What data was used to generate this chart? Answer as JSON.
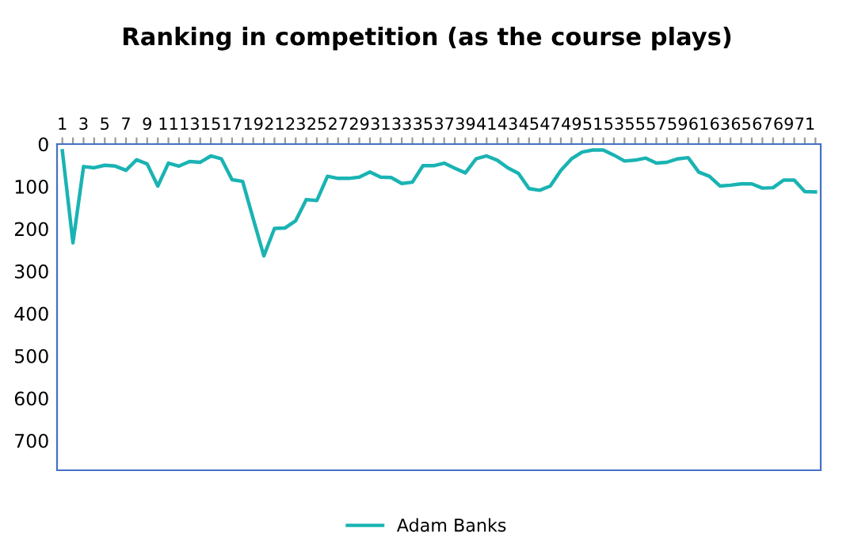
{
  "chart_data": {
    "type": "line",
    "title": "Ranking in competition (as the course plays)",
    "categories": [
      "1",
      null,
      "3",
      null,
      "5",
      null,
      "7",
      null,
      "9",
      null,
      "11",
      null,
      "13",
      null,
      "15",
      null,
      "17",
      null,
      "19",
      null,
      "21",
      null,
      "23",
      null,
      "25",
      null,
      "27",
      null,
      "29",
      null,
      "31",
      null,
      "33",
      null,
      "35",
      null,
      "37",
      null,
      "39",
      null,
      "41",
      null,
      "43",
      null,
      "45",
      null,
      "47",
      null,
      "49",
      null,
      "51",
      null,
      "53",
      null,
      "55",
      null,
      "57",
      null,
      "59",
      null,
      "61",
      null,
      "63",
      null,
      "65",
      null,
      "67",
      null,
      "69",
      null,
      "71",
      null
    ],
    "series": [
      {
        "name": "Adam Banks",
        "color": "#1ab3b3",
        "values": [
          16,
          233,
          53,
          56,
          50,
          52,
          62,
          37,
          47,
          99,
          45,
          52,
          41,
          43,
          28,
          35,
          84,
          88,
          177,
          264,
          199,
          198,
          181,
          131,
          133,
          76,
          81,
          81,
          78,
          66,
          78,
          79,
          93,
          90,
          51,
          51,
          45,
          57,
          68,
          35,
          28,
          38,
          56,
          69,
          105,
          109,
          99,
          62,
          35,
          19,
          14,
          14,
          26,
          40,
          38,
          33,
          45,
          43,
          35,
          32,
          66,
          76,
          99,
          97,
          94,
          94,
          104,
          103,
          85,
          85,
          112,
          113
        ]
      }
    ],
    "ylim": [
      770,
      0
    ],
    "yticks": [
      0,
      100,
      200,
      300,
      400,
      500,
      600,
      700
    ],
    "grid": false,
    "legend": "bottom",
    "marker": "none",
    "line_style": "solid"
  }
}
